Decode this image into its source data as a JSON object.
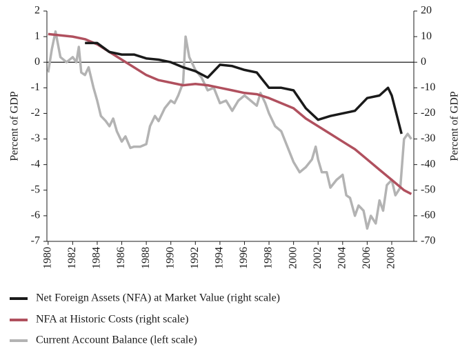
{
  "chart_data": {
    "type": "line",
    "y_label": "Percent of GDP",
    "y2_label": "Percent of GDP",
    "xlim": [
      1979.9,
      2009.8
    ],
    "xticks": [
      1980,
      1982,
      1984,
      1986,
      1988,
      1990,
      1992,
      1994,
      1996,
      1998,
      2000,
      2002,
      2004,
      2006,
      2008
    ],
    "ylim": [
      -7,
      2
    ],
    "yticks": [
      -7,
      -6,
      -5,
      -4,
      -3,
      -2,
      -1,
      0,
      1,
      2
    ],
    "y2lim": [
      -70,
      20
    ],
    "y2ticks": [
      -70,
      -60,
      -50,
      -40,
      -30,
      -20,
      -10,
      0,
      10,
      20
    ],
    "series": [
      {
        "name": "Net Foreign Assets (NFA) at Market Value (right scale)",
        "color": "#1a1a1a",
        "axis": "y2",
        "x": [
          1983,
          1984,
          1985,
          1986,
          1987,
          1988,
          1989,
          1990,
          1991,
          1992,
          1993,
          1994,
          1995,
          1996,
          1997,
          1998,
          1999,
          2000,
          2001,
          2002,
          2003,
          2004,
          2005,
          2006,
          2007,
          2007.7,
          2008,
          2008.8
        ],
        "values": [
          7.5,
          7.5,
          4,
          3,
          3,
          1.5,
          1,
          0,
          -2,
          -3.5,
          -6,
          -1,
          -1.5,
          -3,
          -4,
          -10,
          -10,
          -11,
          -18,
          -22.5,
          -21,
          -20,
          -19,
          -14,
          -13,
          -10,
          -13,
          -28
        ]
      },
      {
        "name": "NFA at Historic Costs (right scale)",
        "color": "#b0505e",
        "axis": "y2",
        "x": [
          1980,
          1981,
          1982,
          1983,
          1984,
          1985,
          1986,
          1987,
          1988,
          1989,
          1990,
          1991,
          1992,
          1993,
          1994,
          1995,
          1996,
          1997,
          1998,
          1999,
          2000,
          2001,
          2002,
          2003,
          2004,
          2005,
          2006,
          2007,
          2008,
          2009,
          2009.6
        ],
        "values": [
          11,
          10.5,
          10,
          9,
          7,
          4,
          1,
          -2,
          -5,
          -7,
          -8,
          -9,
          -8.5,
          -9,
          -10,
          -11,
          -12,
          -12.5,
          -14,
          -16,
          -18,
          -22,
          -25,
          -28,
          -31,
          -34,
          -38,
          -42,
          -46,
          -50,
          -51.5
        ]
      },
      {
        "name": "Current Account Balance (left scale)",
        "color": "#b3b3b3",
        "axis": "y",
        "x": [
          1980,
          1980.3,
          1980.6,
          1981,
          1981.5,
          1982,
          1982.3,
          1982.5,
          1982.7,
          1983,
          1983.3,
          1983.7,
          1984,
          1984.3,
          1984.7,
          1985,
          1985.3,
          1985.6,
          1986,
          1986.3,
          1986.7,
          1987,
          1987.5,
          1988,
          1988.3,
          1988.7,
          1989,
          1989.5,
          1990,
          1990.3,
          1990.6,
          1991,
          1991.2,
          1991.5,
          1992,
          1992.5,
          1993,
          1993.5,
          1994,
          1994.5,
          1995,
          1995.5,
          1996,
          1996.5,
          1997,
          1997.3,
          1997.7,
          1998,
          1998.5,
          1999,
          1999.5,
          2000,
          2000.5,
          2001,
          2001.5,
          2001.8,
          2002,
          2002.3,
          2002.7,
          2003,
          2003.5,
          2004,
          2004.3,
          2004.6,
          2005,
          2005.3,
          2005.7,
          2006,
          2006.3,
          2006.7,
          2007,
          2007.3,
          2007.6,
          2008,
          2008.3,
          2008.7,
          2009,
          2009.3,
          2009.6
        ],
        "values": [
          -0.4,
          0.5,
          1.2,
          0.2,
          0,
          0.2,
          0,
          0.6,
          -0.4,
          -0.5,
          -0.2,
          -1,
          -1.5,
          -2.1,
          -2.3,
          -2.5,
          -2.2,
          -2.7,
          -3.1,
          -2.9,
          -3.35,
          -3.3,
          -3.3,
          -3.2,
          -2.5,
          -2.1,
          -2.3,
          -1.8,
          -1.5,
          -1.6,
          -1.3,
          -0.8,
          1,
          0.2,
          -0.3,
          -0.6,
          -1.1,
          -1,
          -1.6,
          -1.5,
          -1.9,
          -1.5,
          -1.3,
          -1.5,
          -1.7,
          -1.2,
          -1.6,
          -2,
          -2.5,
          -2.7,
          -3.3,
          -3.9,
          -4.3,
          -4.1,
          -3.8,
          -3.3,
          -3.8,
          -4.3,
          -4.3,
          -4.9,
          -4.6,
          -4.4,
          -5.2,
          -5.3,
          -6,
          -5.6,
          -5.8,
          -6.5,
          -6,
          -6.3,
          -5.4,
          -5.8,
          -4.8,
          -4.6,
          -5.2,
          -4.9,
          -3,
          -2.8,
          -3
        ]
      }
    ]
  }
}
